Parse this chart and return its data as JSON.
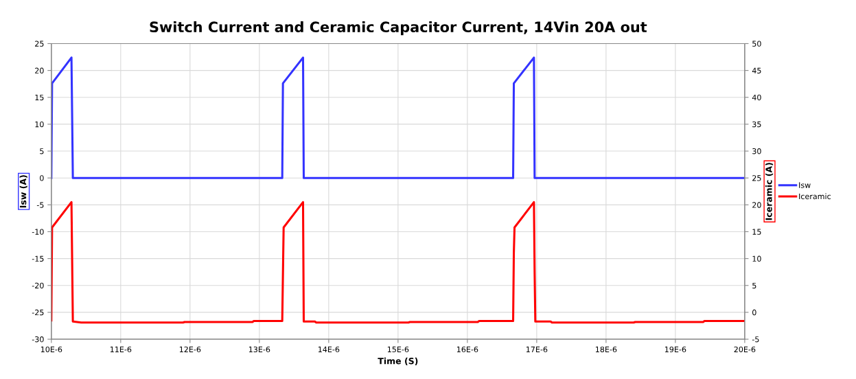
{
  "chart_data": {
    "type": "line",
    "title": "Switch Current and Ceramic Capacitor Current, 14Vin 20A out",
    "xlabel": "Time (S)",
    "ylabel": "Isw (A)",
    "y2label": "Iceramic (A)",
    "xlim": [
      1e-05,
      2e-05
    ],
    "xticks": [
      {
        "value": 1e-05,
        "label": "10E-6"
      },
      {
        "value": 1.1e-05,
        "label": "11E-6"
      },
      {
        "value": 1.2e-05,
        "label": "12E-6"
      },
      {
        "value": 1.3e-05,
        "label": "13E-6"
      },
      {
        "value": 1.4e-05,
        "label": "14E-6"
      },
      {
        "value": 1.5e-05,
        "label": "15E-6"
      },
      {
        "value": 1.6e-05,
        "label": "16E-6"
      },
      {
        "value": 1.7e-05,
        "label": "17E-6"
      },
      {
        "value": 1.8e-05,
        "label": "18E-6"
      },
      {
        "value": 1.9e-05,
        "label": "19E-6"
      },
      {
        "value": 2e-05,
        "label": "20E-6"
      }
    ],
    "ylim": [
      -30,
      25
    ],
    "yticks": [
      -30,
      -25,
      -20,
      -15,
      -10,
      -5,
      0,
      5,
      10,
      15,
      20,
      25
    ],
    "y2lim": [
      -5,
      50
    ],
    "y2ticks": [
      -5,
      0,
      5,
      10,
      15,
      20,
      25,
      30,
      35,
      40,
      45,
      50
    ],
    "grid": true,
    "legend": "right",
    "series": [
      {
        "name": "Isw",
        "color": "#3333ff",
        "x": [
          1e-05,
          1.001e-05,
          1.029e-05,
          1.031e-05,
          1.333e-05,
          1.334e-05,
          1.363e-05,
          1.364e-05,
          1.666e-05,
          1.667e-05,
          1.696e-05,
          1.697e-05,
          2e-05
        ],
        "values": [
          0,
          17.6,
          22.4,
          0,
          0,
          17.6,
          22.4,
          0,
          0,
          17.6,
          22.4,
          0,
          0
        ]
      },
      {
        "name": "Iceramic",
        "color": "#ff0000",
        "axis": "y2",
        "x": [
          1e-05,
          1.001e-05,
          1.029e-05,
          1.031e-05,
          1.043e-05,
          1.19e-05,
          1.192e-05,
          1.29e-05,
          1.292e-05,
          1.333e-05,
          1.335e-05,
          1.363e-05,
          1.364e-05,
          1.38e-05,
          1.382e-05,
          1.515e-05,
          1.517e-05,
          1.615e-05,
          1.617e-05,
          1.666e-05,
          1.667e-05,
          1.668e-05,
          1.696e-05,
          1.697e-05,
          1.698e-05,
          1.72e-05,
          1.722e-05,
          1.84e-05,
          1.842e-05,
          1.94e-05,
          1.942e-05,
          2e-05
        ],
        "values": [
          -1.5,
          15.8,
          20.5,
          -1.7,
          -1.9,
          -1.9,
          -1.8,
          -1.8,
          -1.6,
          -1.6,
          15.8,
          20.5,
          -1.7,
          -1.7,
          -1.9,
          -1.9,
          -1.8,
          -1.8,
          -1.6,
          -1.6,
          11,
          15.8,
          20.5,
          7.5,
          -1.7,
          -1.7,
          -1.9,
          -1.9,
          -1.8,
          -1.8,
          -1.6,
          -1.6
        ]
      }
    ]
  }
}
